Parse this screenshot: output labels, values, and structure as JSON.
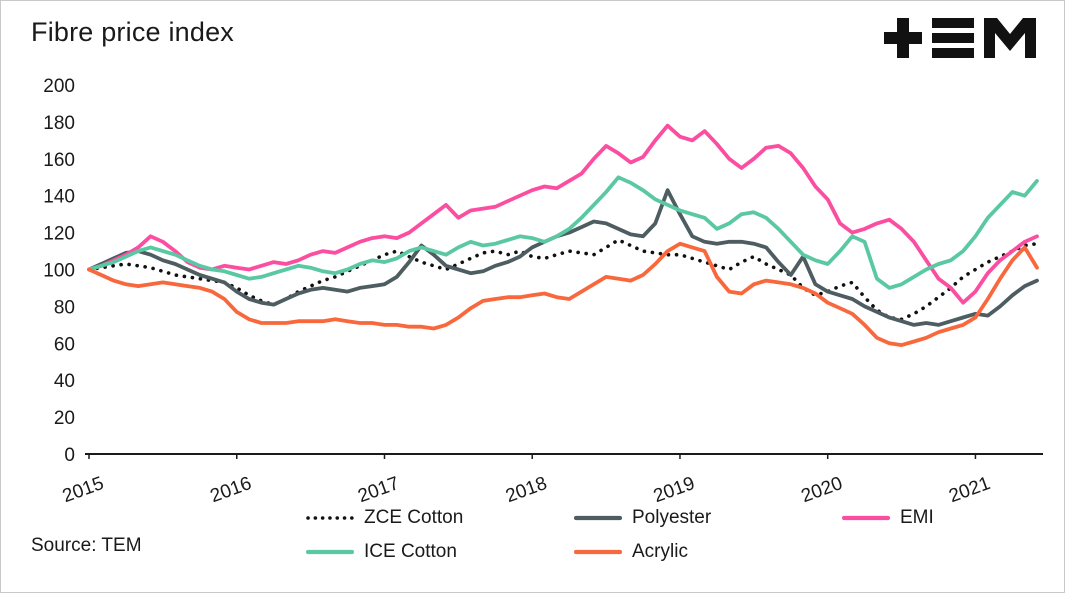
{
  "header": {
    "title": "Fibre price index",
    "logo_text": "TEM"
  },
  "source": {
    "label": "Source: TEM"
  },
  "chart_data": {
    "type": "line",
    "title": "Fibre price index",
    "x_unit": "month",
    "x_tick_labels": [
      "2015",
      "2016",
      "2017",
      "2018",
      "2019",
      "2020",
      "2021"
    ],
    "y_ticks": [
      0,
      20,
      40,
      60,
      80,
      100,
      120,
      140,
      160,
      180,
      200
    ],
    "ylim": [
      0,
      200
    ],
    "grid": false,
    "legend_position": "bottom",
    "legend_rows": [
      [
        0,
        1,
        2
      ],
      [
        3,
        4
      ]
    ],
    "axis_color": "#1a1a1a",
    "series": [
      {
        "name": "ZCE Cotton",
        "color": "#111111",
        "style": "dotted",
        "values": [
          100,
          101,
          102,
          103,
          102,
          101,
          99,
          97,
          96,
          95,
          94,
          93,
          90,
          86,
          83,
          81,
          84,
          88,
          91,
          94,
          96,
          99,
          102,
          105,
          108,
          110,
          107,
          104,
          102,
          100,
          103,
          106,
          109,
          110,
          108,
          110,
          107,
          106,
          108,
          110,
          109,
          108,
          112,
          116,
          113,
          110,
          109,
          108,
          108,
          106,
          104,
          102,
          100,
          104,
          107,
          103,
          100,
          97,
          90,
          86,
          88,
          91,
          93,
          85,
          78,
          74,
          73,
          76,
          80,
          85,
          90,
          96,
          100,
          104,
          107,
          110,
          113,
          114
        ]
      },
      {
        "name": "Polyester",
        "color": "#4d5d61",
        "style": "solid",
        "values": [
          100,
          103,
          106,
          109,
          110,
          108,
          105,
          103,
          100,
          97,
          95,
          93,
          88,
          84,
          82,
          81,
          84,
          87,
          89,
          90,
          89,
          88,
          90,
          91,
          92,
          96,
          104,
          113,
          108,
          102,
          100,
          98,
          99,
          102,
          104,
          107,
          112,
          115,
          118,
          120,
          123,
          126,
          125,
          122,
          119,
          118,
          125,
          143,
          130,
          118,
          115,
          114,
          115,
          115,
          114,
          112,
          104,
          97,
          107,
          92,
          88,
          86,
          84,
          80,
          77,
          74,
          72,
          70,
          71,
          70,
          72,
          74,
          76,
          75,
          80,
          86,
          91,
          94
        ]
      },
      {
        "name": "EMI",
        "color": "#fb4ea1",
        "style": "solid",
        "values": [
          100,
          102,
          105,
          108,
          112,
          118,
          115,
          110,
          104,
          101,
          100,
          102,
          101,
          100,
          102,
          104,
          103,
          105,
          108,
          110,
          109,
          112,
          115,
          117,
          118,
          117,
          120,
          125,
          130,
          135,
          128,
          132,
          133,
          134,
          137,
          140,
          143,
          145,
          144,
          148,
          152,
          160,
          167,
          163,
          158,
          161,
          170,
          178,
          172,
          170,
          175,
          168,
          160,
          155,
          160,
          166,
          167,
          163,
          155,
          145,
          138,
          125,
          120,
          122,
          125,
          127,
          122,
          115,
          105,
          95,
          90,
          82,
          88,
          98,
          105,
          110,
          115,
          118
        ]
      },
      {
        "name": "ICE Cotton",
        "color": "#5bc8a4",
        "style": "solid",
        "values": [
          100,
          102,
          104,
          107,
          110,
          112,
          110,
          108,
          105,
          102,
          100,
          99,
          97,
          95,
          96,
          98,
          100,
          102,
          101,
          99,
          98,
          100,
          103,
          105,
          104,
          106,
          110,
          112,
          110,
          108,
          112,
          115,
          113,
          114,
          116,
          118,
          117,
          115,
          118,
          122,
          128,
          135,
          142,
          150,
          147,
          143,
          138,
          135,
          132,
          130,
          128,
          122,
          125,
          130,
          131,
          128,
          122,
          115,
          108,
          105,
          103,
          110,
          118,
          115,
          95,
          90,
          92,
          96,
          100,
          103,
          105,
          110,
          118,
          128,
          135,
          142,
          140,
          148
        ]
      },
      {
        "name": "Acrylic",
        "color": "#f8683c",
        "style": "solid",
        "values": [
          100,
          97,
          94,
          92,
          91,
          92,
          93,
          92,
          91,
          90,
          88,
          84,
          77,
          73,
          71,
          71,
          71,
          72,
          72,
          72,
          73,
          72,
          71,
          71,
          70,
          70,
          69,
          69,
          68,
          70,
          74,
          79,
          83,
          84,
          85,
          85,
          86,
          87,
          85,
          84,
          88,
          92,
          96,
          95,
          94,
          97,
          103,
          110,
          114,
          112,
          110,
          96,
          88,
          87,
          92,
          94,
          93,
          92,
          90,
          87,
          82,
          79,
          76,
          70,
          63,
          60,
          59,
          61,
          63,
          66,
          68,
          70,
          74,
          84,
          95,
          105,
          112,
          101
        ]
      }
    ]
  }
}
